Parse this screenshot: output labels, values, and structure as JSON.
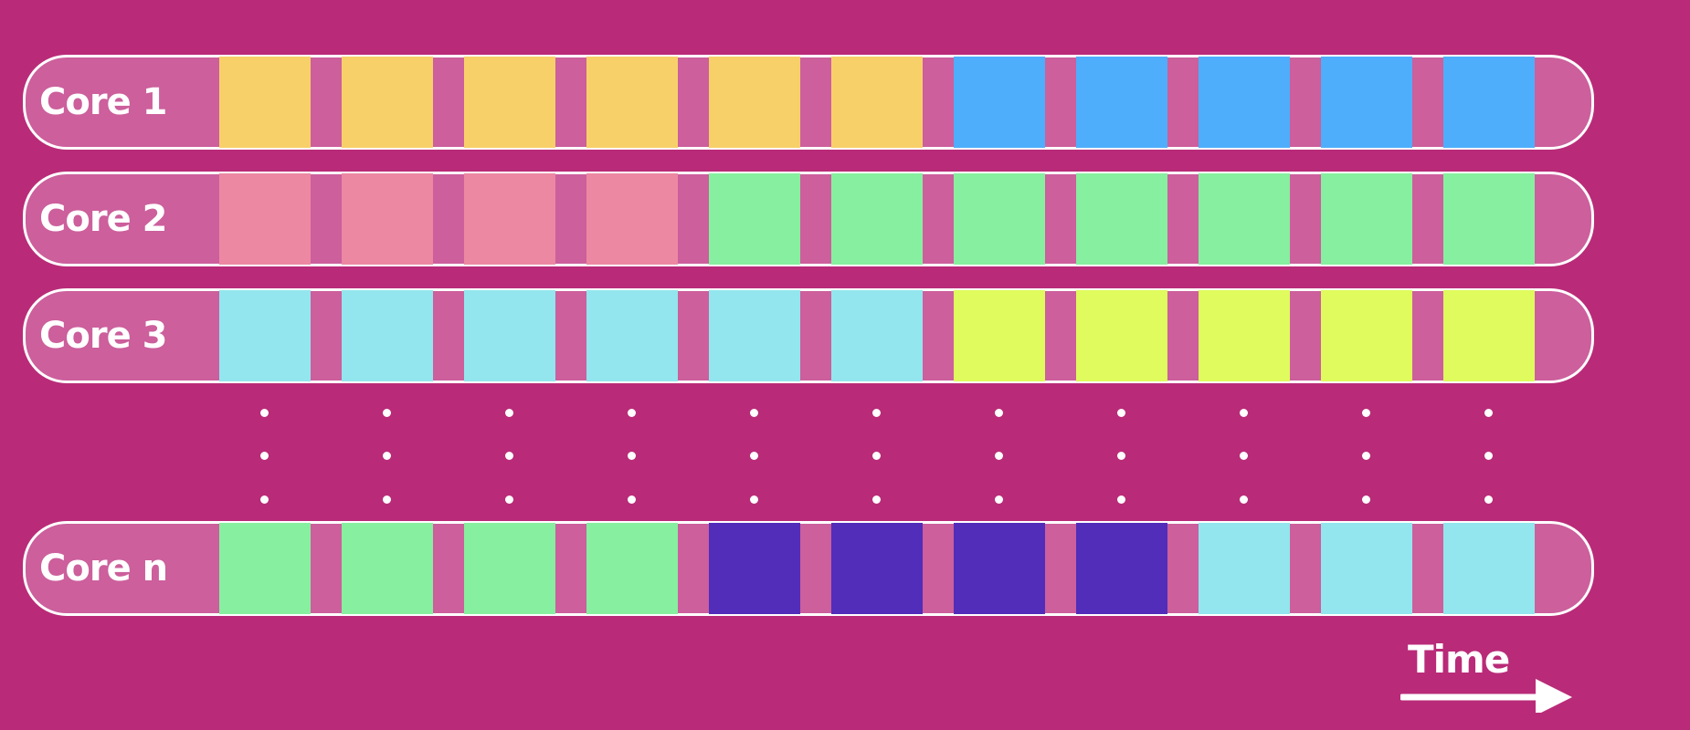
{
  "colors": {
    "background": "#b92b78",
    "lane": "#cc5f9c",
    "outline": "#ffffff"
  },
  "cores": [
    {
      "label": "Core 1",
      "slots": [
        "#f8d06a",
        "#f8d06a",
        "#f8d06a",
        "#f8d06a",
        "#f8d06a",
        "#f8d06a",
        "#4eaefb",
        "#4eaefb",
        "#4eaefb",
        "#4eaefb",
        "#4eaefb"
      ]
    },
    {
      "label": "Core 2",
      "slots": [
        "#ec88a2",
        "#ec88a2",
        "#ec88a2",
        "#ec88a2",
        "#87efa0",
        "#87efa0",
        "#87efa0",
        "#87efa0",
        "#87efa0",
        "#87efa0",
        "#87efa0"
      ]
    },
    {
      "label": "Core 3",
      "slots": [
        "#93e6ee",
        "#93e6ee",
        "#93e6ee",
        "#93e6ee",
        "#93e6ee",
        "#93e6ee",
        "#dffb5d",
        "#dffb5d",
        "#dffb5d",
        "#dffb5d",
        "#dffb5d"
      ]
    },
    {
      "label": "Core n",
      "slots": [
        "#87efa0",
        "#87efa0",
        "#87efa0",
        "#87efa0",
        "#512dba",
        "#512dba",
        "#512dba",
        "#512dba",
        "#93e6ee",
        "#93e6ee",
        "#93e6ee"
      ]
    }
  ],
  "time_label": "Time"
}
